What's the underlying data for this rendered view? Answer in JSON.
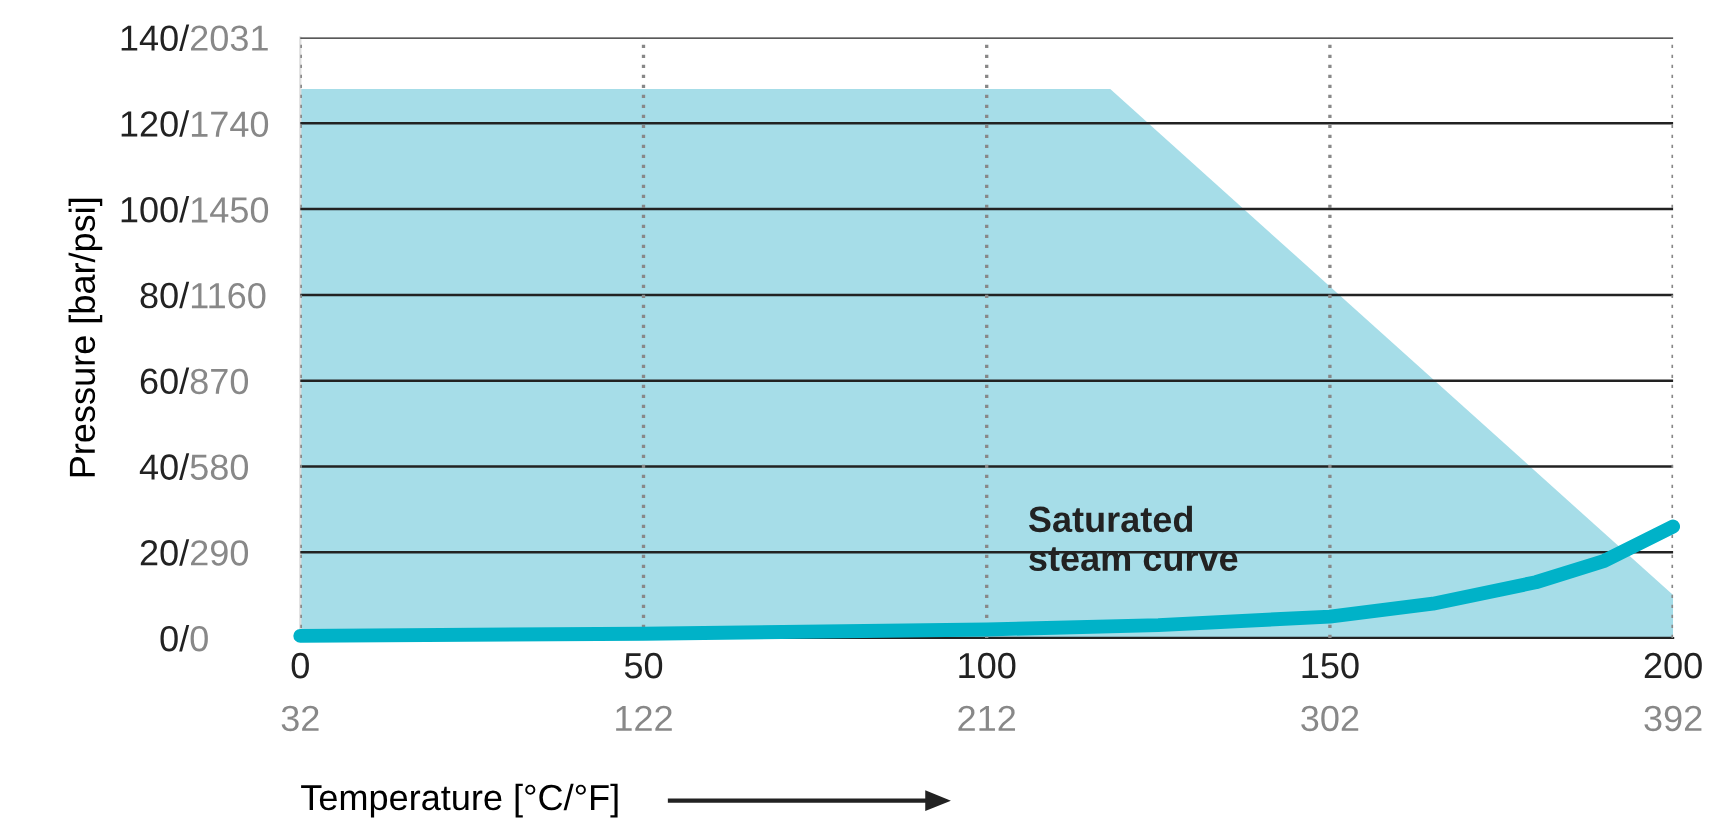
{
  "chart_data": {
    "type": "line",
    "xlabel": "Temperature [°C/°F]",
    "ylabel": "Pressure [bar/psi]",
    "series": [
      {
        "type": "area",
        "color": "#a6dde8",
        "x": [
          0,
          118,
          200
        ],
        "values": [
          128,
          128,
          10
        ]
      },
      {
        "color": "#00b2c8",
        "x": [
          0,
          50,
          100,
          125,
          150,
          165,
          180,
          190,
          200
        ],
        "values": [
          0.5,
          1,
          2,
          3,
          5,
          8,
          13,
          18,
          26
        ]
      }
    ],
    "annotations": [
      "Saturated\nsteam curve"
    ],
    "xlim": [
      0,
      200
    ],
    "xticks": [
      0,
      50,
      100,
      150,
      200
    ],
    "x2lim": [
      32,
      392
    ],
    "x2ticks": [
      32,
      122,
      212,
      302,
      392
    ],
    "ylim": [
      0,
      140
    ],
    "yticks": [
      {
        "value": 0,
        "label": "0/"
      },
      {
        "value": 20,
        "label": "20/"
      },
      {
        "value": 40,
        "label": "40/"
      },
      {
        "value": 60,
        "label": "60/"
      },
      {
        "value": 80,
        "label": "80/"
      },
      {
        "value": 100,
        "label": "100/"
      },
      {
        "value": 120,
        "label": "120/"
      },
      {
        "value": 140,
        "label": "140/"
      }
    ],
    "y2lim": [
      0,
      2031
    ],
    "y2ticks": [
      0,
      290,
      580,
      870,
      1160,
      1450,
      1740,
      2031
    ],
    "grid": true
  }
}
